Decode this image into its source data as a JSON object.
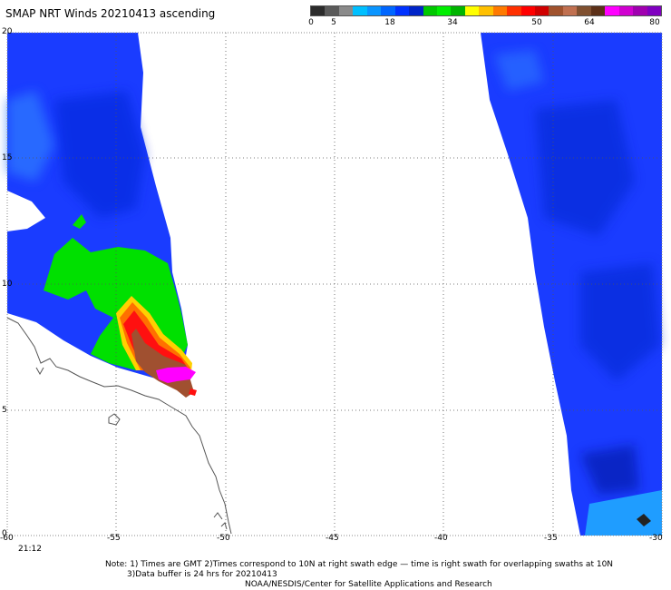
{
  "title": "SMAP NRT Winds 20210413 ascending",
  "colorbar": {
    "labels": [
      "0",
      "5",
      "18",
      "34",
      "50",
      "64",
      "80"
    ],
    "colors": [
      "#2b2b2b",
      "#5a5a5a",
      "#8a8a8a",
      "#00bfff",
      "#0a95ff",
      "#0066ff",
      "#0032ff",
      "#0024c8",
      "#00c800",
      "#00ee00",
      "#00b400",
      "#ffff00",
      "#ffc000",
      "#ff7a00",
      "#ff3000",
      "#ff0000",
      "#d00000",
      "#a0522d",
      "#c07050",
      "#805030",
      "#5c3018",
      "#ff00ff",
      "#d000d0",
      "#a000b0",
      "#8000c0"
    ]
  },
  "axes": {
    "y_ticks": [
      "20",
      "15",
      "10",
      "5",
      "0"
    ],
    "x_ticks": [
      "-60",
      "-55",
      "-50",
      "-45",
      "-40",
      "-35",
      "-30"
    ],
    "lon_range": [
      -60,
      -30
    ],
    "lat_range": [
      0,
      20
    ]
  },
  "time_label": "21:12",
  "notes": [
    "Note: 1) Times are GMT 2)Times correspond to 10N at right swath edge — time is right swath for overlapping swaths at 10N",
    "3)Data buffer is 24 hrs for 20210413",
    "NOAA/NESDIS/Center for Satellite Applications and Research"
  ],
  "legend_colors": {
    "calm_blue": "#0030ff",
    "light_blue": "#00b0ff",
    "green": "#00e000",
    "yellow": "#ffd000",
    "orange": "#ff7000",
    "red": "#ff1010",
    "brown": "#a05030",
    "magenta": "#ff00ff"
  }
}
